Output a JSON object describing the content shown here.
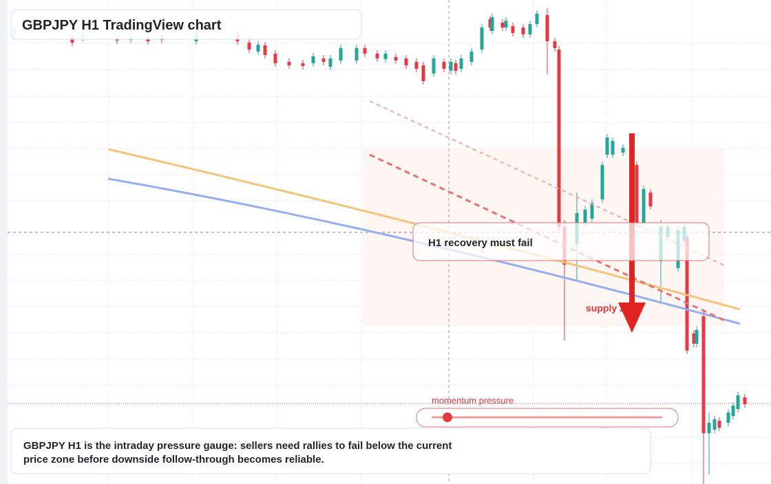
{
  "header": {
    "title": "GBPJPY H1 TradingView chart"
  },
  "annotations": {
    "zone_label": "H1 recovery must fail",
    "supply": "supply zone",
    "momentum": "momentum pressure"
  },
  "description": {
    "lines": [
      "GBPJPY H1 is the intraday pressure gauge: sellers need rallies to fail below the current",
      "price zone before downside follow-through becomes reliable."
    ]
  }
}
